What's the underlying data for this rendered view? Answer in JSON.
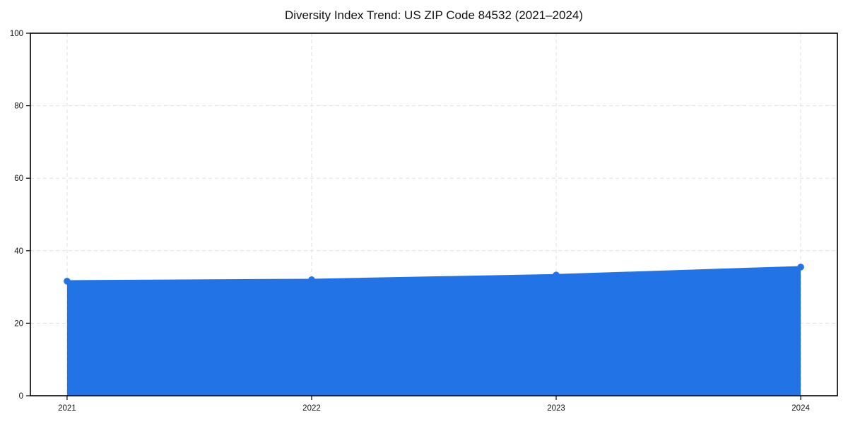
{
  "chart_data": {
    "type": "line",
    "title": "Diversity Index Trend: US ZIP Code 84532 (2021–2024)",
    "x": [
      2021,
      2022,
      2023,
      2024
    ],
    "series": [
      {
        "name": "Diversity Index",
        "values": [
          31.6,
          32.0,
          33.3,
          35.5
        ]
      }
    ],
    "xlabel": "",
    "ylabel": "",
    "xlim": [
      2020.85,
      2024.15
    ],
    "ylim": [
      0,
      100
    ],
    "xticks": [
      2021,
      2022,
      2023,
      2024
    ],
    "xtick_labels": [
      "2021",
      "2022",
      "2023",
      "2024"
    ],
    "yticks": [
      0,
      20,
      40,
      60,
      80,
      100
    ],
    "ytick_labels": [
      "0",
      "20",
      "40",
      "60",
      "80",
      "100"
    ],
    "grid": true,
    "grid_style": "dashed",
    "legend_position": "none",
    "area_fill": true,
    "colors": {
      "line": "#2273e6",
      "marker": "#2273e6",
      "area_fill": "#2273e6",
      "area_fill_opacity": 0.1,
      "grid": "#e0e0e0",
      "spine": "#000000",
      "text": "#111111",
      "background": "#ffffff"
    },
    "line_width": 2.8,
    "marker_radius": 4.8
  },
  "layout_note": ""
}
